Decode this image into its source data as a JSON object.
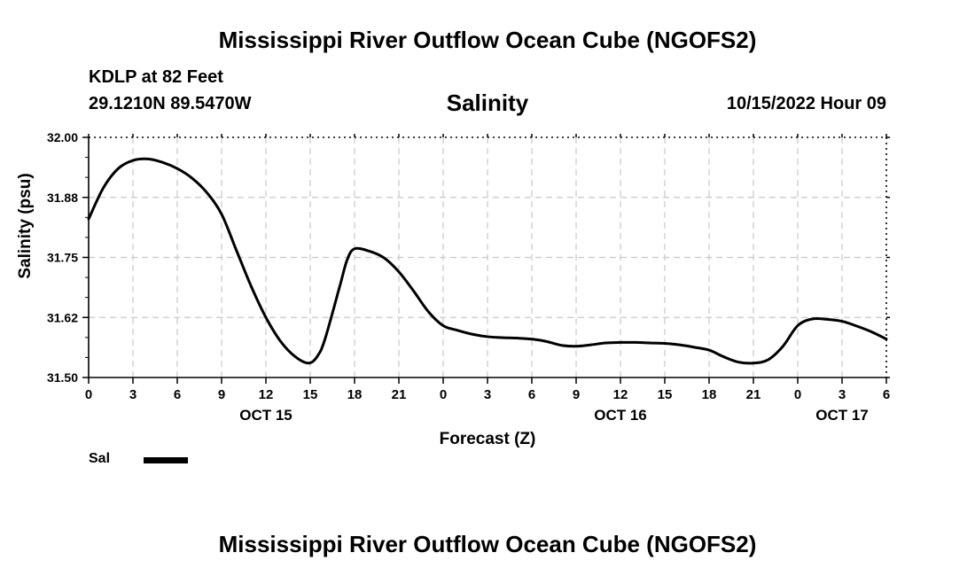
{
  "header": {
    "title": "Mississippi River Outflow Ocean Cube (NGOFS2)",
    "station": "KDLP at 82 Feet",
    "coordinates": "29.1210N  89.5470W",
    "timestamp": "10/15/2022 Hour 09"
  },
  "footer": {
    "title": "Mississippi River Outflow Ocean Cube (NGOFS2)"
  },
  "legend": {
    "items": [
      {
        "label": "Sal",
        "color": "#000000"
      }
    ]
  },
  "chart_data": {
    "type": "line",
    "title": "Salinity",
    "xlabel": "Forecast (Z)",
    "ylabel": "Salinity (psu)",
    "ylim": [
      31.5,
      32.0
    ],
    "xlim": [
      0,
      54
    ],
    "grid": true,
    "y_ticks": [
      "31.50",
      "31.62",
      "31.75",
      "31.88",
      "32.00"
    ],
    "y_tick_values": [
      31.5,
      31.625,
      31.75,
      31.875,
      32.0
    ],
    "x_ticks": [
      "0",
      "3",
      "6",
      "9",
      "12",
      "15",
      "18",
      "21",
      "0",
      "3",
      "6",
      "9",
      "12",
      "15",
      "18",
      "21",
      "0",
      "3",
      "6"
    ],
    "date_labels": [
      {
        "label": "OCT 15",
        "hour": 12
      },
      {
        "label": "OCT 16",
        "hour": 36
      },
      {
        "label": "OCT 17",
        "hour": 51
      }
    ],
    "series": [
      {
        "name": "Sal",
        "color": "#000000",
        "x": [
          0,
          1,
          2,
          3,
          4,
          5,
          6,
          7,
          8,
          9,
          10,
          11,
          12,
          13,
          14,
          14.9,
          15.5,
          16,
          17,
          17.5,
          18,
          19,
          20,
          21,
          22,
          23,
          24,
          25,
          26,
          27,
          28,
          29,
          30,
          31,
          32,
          33,
          34,
          35,
          36,
          37,
          38,
          39,
          40,
          41,
          42,
          43,
          44,
          45,
          46,
          47,
          48,
          49,
          50,
          51,
          52,
          53,
          54
        ],
        "values": [
          31.83,
          31.895,
          31.935,
          31.952,
          31.955,
          31.948,
          31.935,
          31.915,
          31.885,
          31.84,
          31.765,
          31.69,
          31.625,
          31.575,
          31.543,
          31.53,
          31.545,
          31.58,
          31.69,
          31.745,
          31.768,
          31.763,
          31.749,
          31.72,
          31.68,
          31.637,
          31.608,
          31.598,
          31.59,
          31.585,
          31.583,
          31.582,
          31.58,
          31.575,
          31.567,
          31.565,
          31.568,
          31.572,
          31.573,
          31.573,
          31.572,
          31.571,
          31.568,
          31.563,
          31.557,
          31.543,
          31.532,
          31.53,
          31.537,
          31.565,
          31.608,
          31.622,
          31.621,
          31.617,
          31.607,
          31.595,
          31.58
        ]
      }
    ]
  }
}
